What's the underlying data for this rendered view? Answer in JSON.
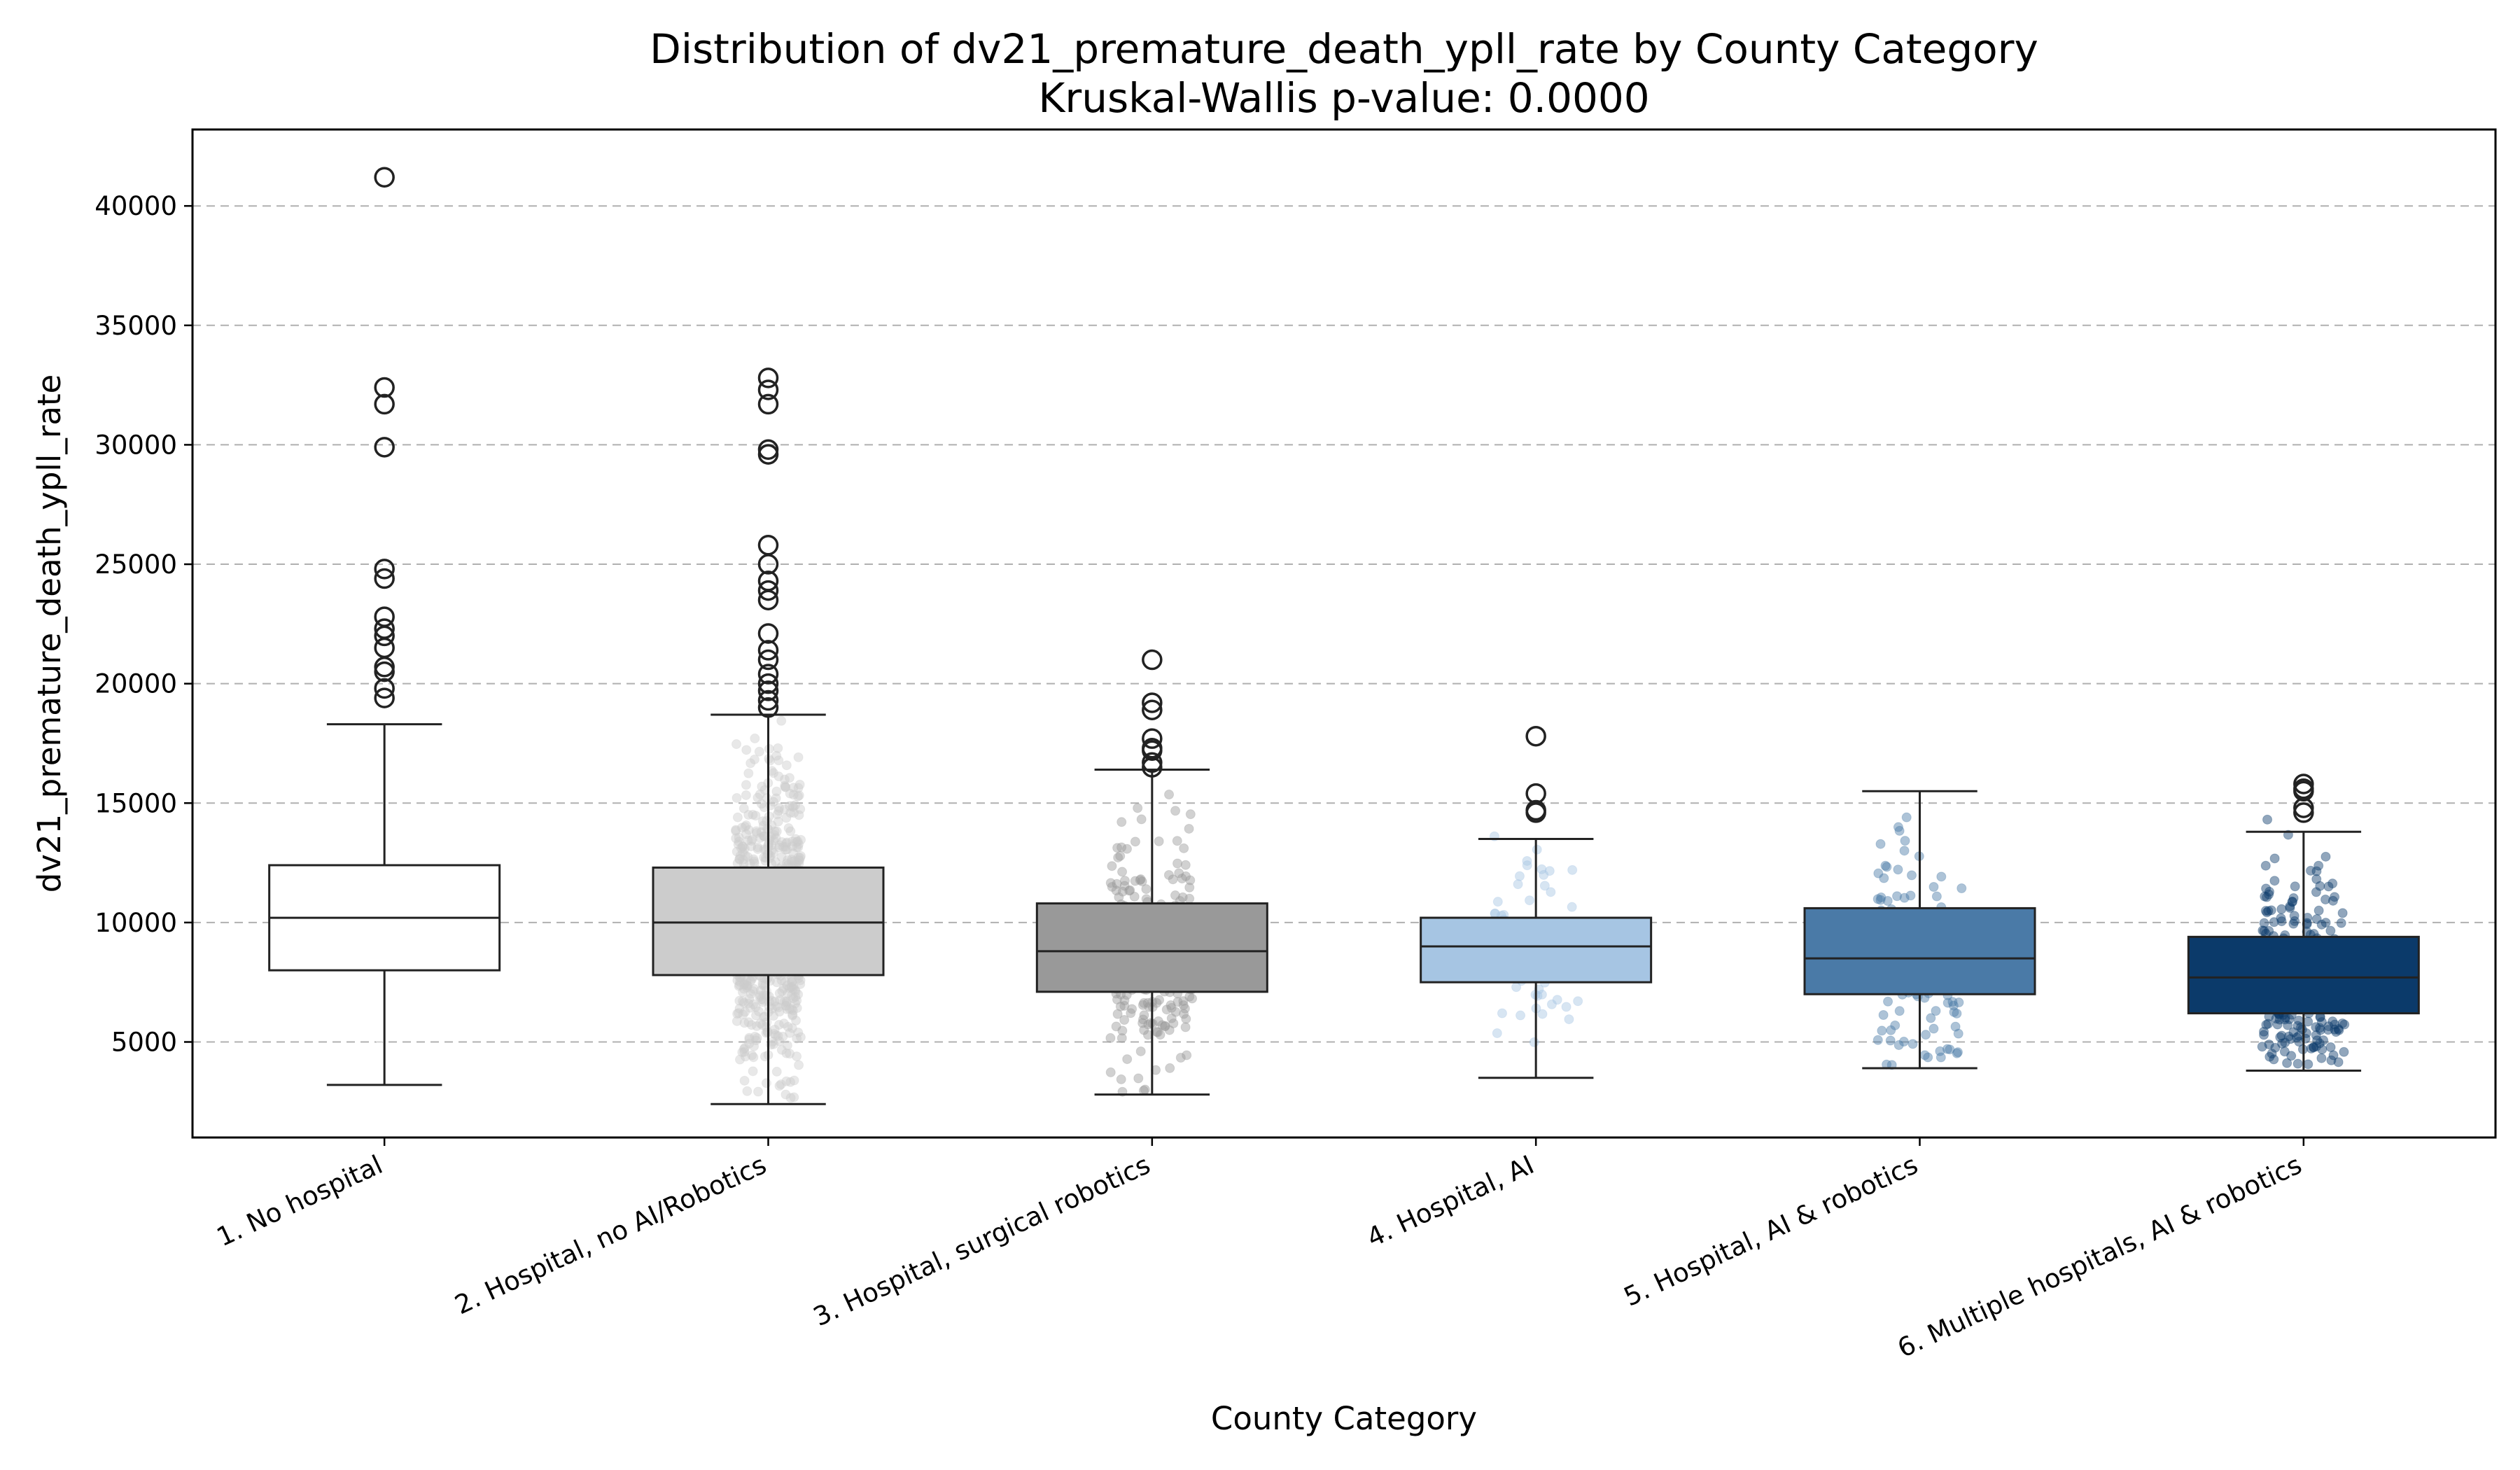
{
  "chart_data": {
    "type": "box",
    "title": "Distribution of dv21_premature_death_ypll_rate by County Category",
    "subtitle": "Kruskal-Wallis p-value: 0.0000",
    "xlabel": "County Category",
    "ylabel": "dv21_premature_death_ypll_rate",
    "ylim": [
      1000,
      43200
    ],
    "yticks": [
      5000,
      10000,
      15000,
      20000,
      25000,
      30000,
      35000,
      40000
    ],
    "grid": "y-dashed",
    "categories": [
      "1. No hospital",
      "2. Hospital, no AI/Robotics",
      "3. Hospital, surgical robotics",
      "4. Hospital, AI",
      "5. Hospital, AI & robotics",
      "6. Multiple hospitals, AI & robotics"
    ],
    "colors": [
      "#ffffff",
      "#cccccc",
      "#999999",
      "#a6c5e3",
      "#4a7aa7",
      "#0b3a6a"
    ],
    "boxes": [
      {
        "whisker_low": 3200,
        "q1": 8000,
        "median": 10200,
        "q3": 12400,
        "whisker_high": 18300,
        "outliers": [
          41200,
          32400,
          31700,
          29900,
          24800,
          24400,
          22800,
          22300,
          22000,
          21500,
          20700,
          20500,
          19800,
          19400
        ],
        "strip": {
          "n": 40,
          "low": 4000,
          "high": 17000,
          "spread": 0.03
        }
      },
      {
        "whisker_low": 2400,
        "q1": 7800,
        "median": 10000,
        "q3": 12300,
        "whisker_high": 18700,
        "outliers": [
          32800,
          32300,
          31700,
          29800,
          29600,
          25800,
          25000,
          24300,
          23900,
          23500,
          22100,
          21400,
          21000,
          20400,
          20000,
          19700,
          19300,
          19000
        ],
        "strip": {
          "n": 700,
          "low": 2600,
          "high": 21500,
          "spread": 0.085
        }
      },
      {
        "whisker_low": 2800,
        "q1": 7100,
        "median": 8800,
        "q3": 10800,
        "whisker_high": 16400,
        "outliers": [
          21000,
          19200,
          18900,
          17700,
          17300,
          17200,
          16700,
          16500
        ],
        "strip": {
          "n": 220,
          "low": 2900,
          "high": 20000,
          "spread": 0.11
        }
      },
      {
        "whisker_low": 3500,
        "q1": 7500,
        "median": 9000,
        "q3": 10200,
        "whisker_high": 13500,
        "outliers": [
          17800,
          15400,
          14700,
          14600
        ],
        "strip": {
          "n": 70,
          "low": 4500,
          "high": 15500,
          "spread": 0.11
        }
      },
      {
        "whisker_low": 3900,
        "q1": 7000,
        "median": 8500,
        "q3": 10600,
        "whisker_high": 15500,
        "outliers": [],
        "strip": {
          "n": 110,
          "low": 4000,
          "high": 15400,
          "spread": 0.11
        }
      },
      {
        "whisker_low": 3800,
        "q1": 6200,
        "median": 7700,
        "q3": 9400,
        "whisker_high": 13800,
        "outliers": [
          15800,
          15600,
          15500,
          14800,
          14600
        ],
        "strip": {
          "n": 260,
          "low": 4000,
          "high": 15700,
          "spread": 0.11
        }
      }
    ]
  }
}
